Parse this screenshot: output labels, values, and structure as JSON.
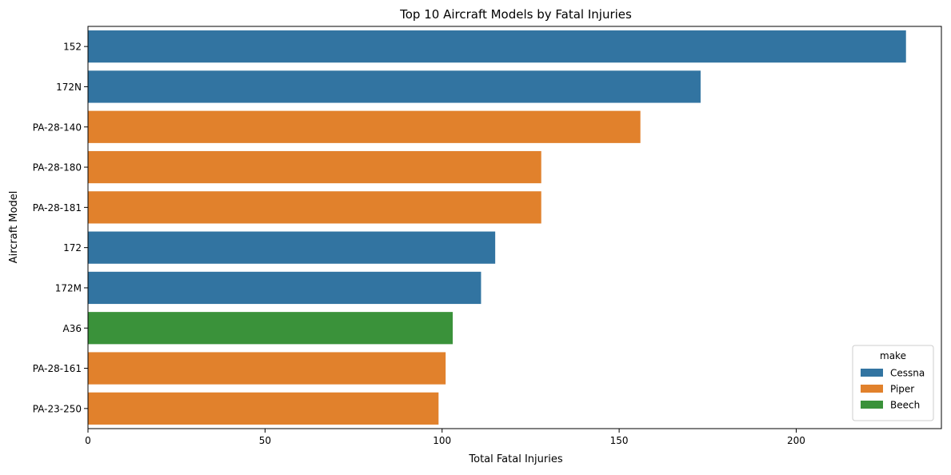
{
  "chart_data": {
    "type": "bar",
    "orientation": "horizontal",
    "title": "Top 10 Aircraft Models by Fatal Injuries",
    "xlabel": "Total Fatal Injuries",
    "ylabel": "Aircraft Model",
    "xlim": [
      0,
      241
    ],
    "xticks": [
      0,
      50,
      100,
      150,
      200
    ],
    "grid": false,
    "categories": [
      "152",
      "172N",
      "PA-28-140",
      "PA-28-180",
      "PA-28-181",
      "172",
      "172M",
      "A36",
      "PA-28-161",
      "PA-23-250"
    ],
    "values": [
      231,
      173,
      156,
      128,
      128,
      115,
      111,
      103,
      101,
      99
    ],
    "make": [
      "Cessna",
      "Cessna",
      "Piper",
      "Piper",
      "Piper",
      "Cessna",
      "Cessna",
      "Beech",
      "Piper",
      "Piper"
    ],
    "legend": {
      "title": "make",
      "position": "lower-right",
      "entries": [
        {
          "name": "Cessna",
          "color": "#3274a1"
        },
        {
          "name": "Piper",
          "color": "#e1812c"
        },
        {
          "name": "Beech",
          "color": "#3a923a"
        }
      ]
    }
  }
}
